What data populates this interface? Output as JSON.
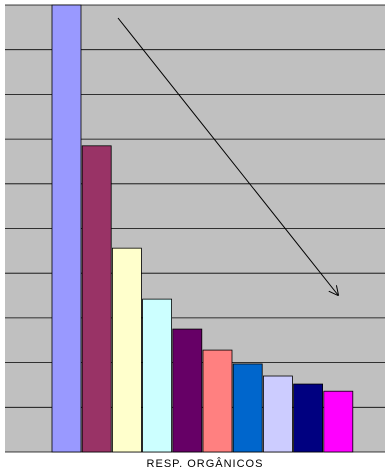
{
  "chart_data": {
    "type": "bar",
    "x_label": "RESP. ORGÂNICOS",
    "categories": [
      null,
      null,
      null,
      null,
      null,
      null,
      null,
      null,
      null,
      null
    ],
    "values": [
      10,
      6.85,
      4.56,
      3.42,
      2.75,
      2.28,
      1.97,
      1.7,
      1.52,
      1.36
    ],
    "colors": [
      "#9999ff",
      "#993366",
      "#ffffcc",
      "#ccffff",
      "#660066",
      "#ff8080",
      "#0066cc",
      "#ccccff",
      "#000080",
      "#ff00ff"
    ],
    "ylim": [
      0,
      10
    ],
    "yticks": [
      0,
      1,
      2,
      3,
      4,
      5,
      6,
      7,
      8,
      9,
      10
    ],
    "grid": true
  }
}
